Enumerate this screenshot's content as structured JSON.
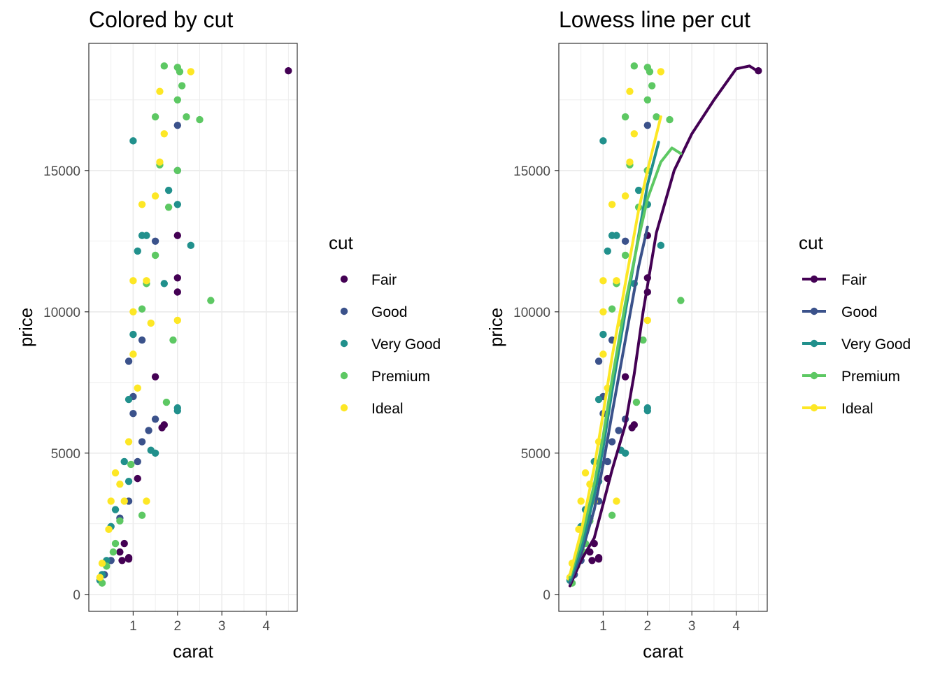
{
  "legend": {
    "title": "cut",
    "items": [
      {
        "label": "Fair",
        "color": "#440154"
      },
      {
        "label": "Good",
        "color": "#3B528B"
      },
      {
        "label": "Very Good",
        "color": "#21908C"
      },
      {
        "label": "Premium",
        "color": "#5DC863"
      },
      {
        "label": "Ideal",
        "color": "#FDE725"
      }
    ]
  },
  "chart_data": [
    {
      "type": "scatter",
      "title": "Colored by cut",
      "xlabel": "carat",
      "ylabel": "price",
      "xlim": [
        0.0,
        4.7
      ],
      "ylim": [
        -600,
        19500
      ],
      "xticks": [
        1,
        2,
        3,
        4
      ],
      "yticks": [
        0,
        5000,
        10000,
        15000
      ],
      "grid": true,
      "legend_position": "right",
      "series": [
        {
          "name": "Fair",
          "color": "#440154",
          "points": [
            [
              4.5,
              18530
            ],
            [
              1.7,
              6000
            ],
            [
              1.65,
              5900
            ],
            [
              2.0,
              12700
            ],
            [
              2.0,
              11200
            ],
            [
              2.0,
              10700
            ],
            [
              1.1,
              4100
            ],
            [
              0.9,
              1300
            ],
            [
              0.75,
              1200
            ],
            [
              0.9,
              1250
            ],
            [
              0.7,
              1500
            ],
            [
              0.8,
              1800
            ],
            [
              1.5,
              7700
            ]
          ]
        },
        {
          "name": "Good",
          "color": "#3B528B",
          "points": [
            [
              0.9,
              8250
            ],
            [
              1.0,
              6400
            ],
            [
              1.2,
              5400
            ],
            [
              1.1,
              4700
            ],
            [
              0.9,
              3300
            ],
            [
              1.5,
              6200
            ],
            [
              2.0,
              16600
            ],
            [
              2.0,
              15000
            ],
            [
              1.5,
              12500
            ],
            [
              1.0,
              7000
            ],
            [
              0.7,
              2700
            ],
            [
              1.2,
              9000
            ],
            [
              0.5,
              1200
            ],
            [
              0.35,
              700
            ],
            [
              1.35,
              5800
            ]
          ]
        },
        {
          "name": "Very Good",
          "color": "#21908C",
          "points": [
            [
              1.0,
              16050
            ],
            [
              2.3,
              12350
            ],
            [
              2.0,
              6500
            ],
            [
              1.2,
              12700
            ],
            [
              1.3,
              12700
            ],
            [
              1.1,
              12150
            ],
            [
              0.8,
              4700
            ],
            [
              1.5,
              5000
            ],
            [
              0.9,
              4000
            ],
            [
              1.8,
              14300
            ],
            [
              2.0,
              13800
            ],
            [
              0.5,
              2400
            ],
            [
              0.3,
              700
            ],
            [
              0.9,
              6900
            ],
            [
              0.4,
              1200
            ],
            [
              1.7,
              11000
            ],
            [
              1.4,
              5100
            ],
            [
              2.0,
              6600
            ],
            [
              1.0,
              9200
            ],
            [
              0.6,
              3000
            ],
            [
              0.25,
              500
            ]
          ]
        },
        {
          "name": "Premium",
          "color": "#5DC863",
          "points": [
            [
              1.7,
              18700
            ],
            [
              2.0,
              18650
            ],
            [
              2.05,
              18500
            ],
            [
              2.1,
              18000
            ],
            [
              2.0,
              17500
            ],
            [
              2.5,
              16800
            ],
            [
              2.2,
              16900
            ],
            [
              1.5,
              16900
            ],
            [
              1.6,
              15200
            ],
            [
              2.0,
              15000
            ],
            [
              1.8,
              13700
            ],
            [
              2.75,
              10400
            ],
            [
              1.2,
              10100
            ],
            [
              1.9,
              9000
            ],
            [
              0.6,
              1800
            ],
            [
              1.2,
              2800
            ],
            [
              1.75,
              6800
            ],
            [
              0.4,
              1000
            ],
            [
              0.7,
              2600
            ],
            [
              1.5,
              12000
            ],
            [
              1.3,
              11000
            ],
            [
              0.95,
              4600
            ],
            [
              0.3,
              400
            ],
            [
              0.55,
              1500
            ]
          ]
        },
        {
          "name": "Ideal",
          "color": "#FDE725",
          "points": [
            [
              2.3,
              18500
            ],
            [
              1.6,
              17800
            ],
            [
              1.7,
              16300
            ],
            [
              1.0,
              11100
            ],
            [
              1.3,
              11100
            ],
            [
              2.0,
              9700
            ],
            [
              0.8,
              3300
            ],
            [
              1.3,
              3300
            ],
            [
              1.2,
              13800
            ],
            [
              1.5,
              14100
            ],
            [
              1.6,
              15300
            ],
            [
              0.6,
              4300
            ],
            [
              0.5,
              3300
            ],
            [
              0.45,
              2300
            ],
            [
              0.3,
              1100
            ],
            [
              0.25,
              600
            ],
            [
              1.0,
              8500
            ],
            [
              1.1,
              7300
            ],
            [
              1.4,
              9600
            ],
            [
              0.9,
              5400
            ],
            [
              0.7,
              3900
            ],
            [
              1.0,
              10000
            ]
          ]
        }
      ]
    },
    {
      "type": "scatter",
      "title": "Lowess line per cut",
      "xlabel": "carat",
      "ylabel": "price",
      "xlim": [
        0.0,
        4.7
      ],
      "ylim": [
        -600,
        19500
      ],
      "xticks": [
        1,
        2,
        3,
        4
      ],
      "yticks": [
        0,
        5000,
        10000,
        15000
      ],
      "grid": true,
      "legend_position": "right",
      "series": [
        {
          "name": "Fair",
          "color": "#440154",
          "points": [
            [
              4.5,
              18530
            ],
            [
              1.7,
              6000
            ],
            [
              1.65,
              5900
            ],
            [
              2.0,
              12700
            ],
            [
              2.0,
              11200
            ],
            [
              2.0,
              10700
            ],
            [
              1.1,
              4100
            ],
            [
              0.9,
              1300
            ],
            [
              0.75,
              1200
            ],
            [
              0.9,
              1250
            ],
            [
              0.7,
              1500
            ],
            [
              0.8,
              1800
            ],
            [
              1.5,
              7700
            ]
          ],
          "lowess": [
            [
              0.25,
              300
            ],
            [
              0.5,
              1200
            ],
            [
              0.8,
              2000
            ],
            [
              1.0,
              3200
            ],
            [
              1.2,
              4400
            ],
            [
              1.5,
              6000
            ],
            [
              1.7,
              7800
            ],
            [
              1.9,
              10000
            ],
            [
              2.2,
              12800
            ],
            [
              2.6,
              15000
            ],
            [
              3.0,
              16300
            ],
            [
              3.5,
              17500
            ],
            [
              4.0,
              18600
            ],
            [
              4.3,
              18700
            ],
            [
              4.5,
              18500
            ]
          ]
        },
        {
          "name": "Good",
          "color": "#3B528B",
          "points": [
            [
              0.9,
              8250
            ],
            [
              1.0,
              6400
            ],
            [
              1.2,
              5400
            ],
            [
              1.1,
              4700
            ],
            [
              0.9,
              3300
            ],
            [
              1.5,
              6200
            ],
            [
              2.0,
              16600
            ],
            [
              2.0,
              15000
            ],
            [
              1.5,
              12500
            ],
            [
              1.0,
              7000
            ],
            [
              0.7,
              2700
            ],
            [
              1.2,
              9000
            ],
            [
              0.5,
              1200
            ],
            [
              0.35,
              700
            ],
            [
              1.35,
              5800
            ]
          ],
          "lowess": [
            [
              0.25,
              400
            ],
            [
              0.5,
              1400
            ],
            [
              0.8,
              3000
            ],
            [
              1.0,
              4600
            ],
            [
              1.2,
              6400
            ],
            [
              1.5,
              9000
            ],
            [
              1.8,
              11600
            ],
            [
              2.0,
              13000
            ]
          ]
        },
        {
          "name": "Very Good",
          "color": "#21908C",
          "points": [
            [
              1.0,
              16050
            ],
            [
              2.3,
              12350
            ],
            [
              2.0,
              6500
            ],
            [
              1.2,
              12700
            ],
            [
              1.3,
              12700
            ],
            [
              1.1,
              12150
            ],
            [
              0.8,
              4700
            ],
            [
              1.5,
              5000
            ],
            [
              0.9,
              4000
            ],
            [
              1.8,
              14300
            ],
            [
              2.0,
              13800
            ],
            [
              0.5,
              2400
            ],
            [
              0.3,
              700
            ],
            [
              0.9,
              6900
            ],
            [
              0.4,
              1200
            ],
            [
              1.7,
              11000
            ],
            [
              1.4,
              5100
            ],
            [
              2.0,
              6600
            ],
            [
              1.0,
              9200
            ],
            [
              0.6,
              3000
            ],
            [
              0.25,
              500
            ]
          ],
          "lowess": [
            [
              0.25,
              500
            ],
            [
              0.5,
              1600
            ],
            [
              0.8,
              3500
            ],
            [
              1.0,
              5200
            ],
            [
              1.2,
              7200
            ],
            [
              1.5,
              10000
            ],
            [
              1.8,
              12700
            ],
            [
              2.0,
              14500
            ],
            [
              2.25,
              16000
            ]
          ]
        },
        {
          "name": "Premium",
          "color": "#5DC863",
          "points": [
            [
              1.7,
              18700
            ],
            [
              2.0,
              18650
            ],
            [
              2.05,
              18500
            ],
            [
              2.1,
              18000
            ],
            [
              2.0,
              17500
            ],
            [
              2.5,
              16800
            ],
            [
              2.2,
              16900
            ],
            [
              1.5,
              16900
            ],
            [
              1.6,
              15200
            ],
            [
              2.0,
              15000
            ],
            [
              1.8,
              13700
            ],
            [
              2.75,
              10400
            ],
            [
              1.2,
              10100
            ],
            [
              1.9,
              9000
            ],
            [
              0.6,
              1800
            ],
            [
              1.2,
              2800
            ],
            [
              1.75,
              6800
            ],
            [
              0.4,
              1000
            ],
            [
              0.7,
              2600
            ],
            [
              1.5,
              12000
            ],
            [
              1.3,
              11000
            ],
            [
              0.95,
              4600
            ],
            [
              0.3,
              400
            ],
            [
              0.55,
              1500
            ]
          ],
          "lowess": [
            [
              0.25,
              600
            ],
            [
              0.5,
              1900
            ],
            [
              0.8,
              3900
            ],
            [
              1.0,
              5600
            ],
            [
              1.2,
              7600
            ],
            [
              1.5,
              10300
            ],
            [
              1.8,
              12600
            ],
            [
              2.0,
              14000
            ],
            [
              2.3,
              15300
            ],
            [
              2.55,
              15800
            ],
            [
              2.75,
              15600
            ]
          ]
        },
        {
          "name": "Ideal",
          "color": "#FDE725",
          "points": [
            [
              2.3,
              18500
            ],
            [
              1.6,
              17800
            ],
            [
              1.7,
              16300
            ],
            [
              1.0,
              11100
            ],
            [
              1.3,
              11100
            ],
            [
              2.0,
              9700
            ],
            [
              0.8,
              3300
            ],
            [
              1.3,
              3300
            ],
            [
              1.2,
              13800
            ],
            [
              1.5,
              14100
            ],
            [
              1.6,
              15300
            ],
            [
              0.6,
              4300
            ],
            [
              0.5,
              3300
            ],
            [
              0.45,
              2300
            ],
            [
              0.3,
              1100
            ],
            [
              0.25,
              600
            ],
            [
              1.0,
              8500
            ],
            [
              1.1,
              7300
            ],
            [
              1.4,
              9600
            ],
            [
              0.9,
              5400
            ],
            [
              0.7,
              3900
            ],
            [
              1.0,
              10000
            ]
          ],
          "lowess": [
            [
              0.25,
              700
            ],
            [
              0.5,
              2200
            ],
            [
              0.8,
              4500
            ],
            [
              1.0,
              6400
            ],
            [
              1.2,
              8400
            ],
            [
              1.5,
              11000
            ],
            [
              1.8,
              13600
            ],
            [
              2.0,
              15000
            ],
            [
              2.3,
              16900
            ]
          ]
        }
      ]
    }
  ]
}
